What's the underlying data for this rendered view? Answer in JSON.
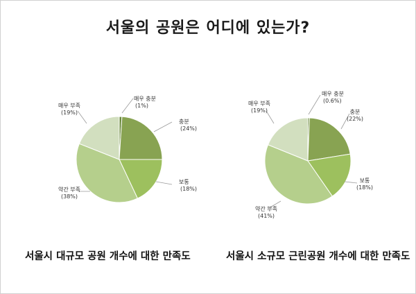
{
  "page": {
    "title": "서울의 공원은 어디에 있는가?"
  },
  "chart_data": [
    {
      "type": "pie",
      "title": "서울시 대규모 공원 개수에 대한 만족도",
      "categories": [
        "매우 충분",
        "충분",
        "보통",
        "약간 부족",
        "매우 부족"
      ],
      "values": [
        1,
        24,
        18,
        38,
        19
      ],
      "labels": [
        "(1%)",
        "(24%)",
        "(18%)",
        "(38%)",
        "(19%)"
      ],
      "colors": [
        "#6b8a3e",
        "#88a352",
        "#9dc05e",
        "#b5cf8c",
        "#d2dfbf"
      ]
    },
    {
      "type": "pie",
      "title": "서울시 소규모 근린공원 개수에 대한 만족도",
      "categories": [
        "매우 충분",
        "충분",
        "보통",
        "약간 부족",
        "매우 부족"
      ],
      "values": [
        0.6,
        22,
        18,
        41,
        19
      ],
      "labels": [
        "(0.6%)",
        "(22%)",
        "(18%)",
        "(41%)",
        "(19%)"
      ],
      "colors": [
        "#6b8a3e",
        "#88a352",
        "#9dc05e",
        "#b5cf8c",
        "#d2dfbf"
      ]
    }
  ]
}
